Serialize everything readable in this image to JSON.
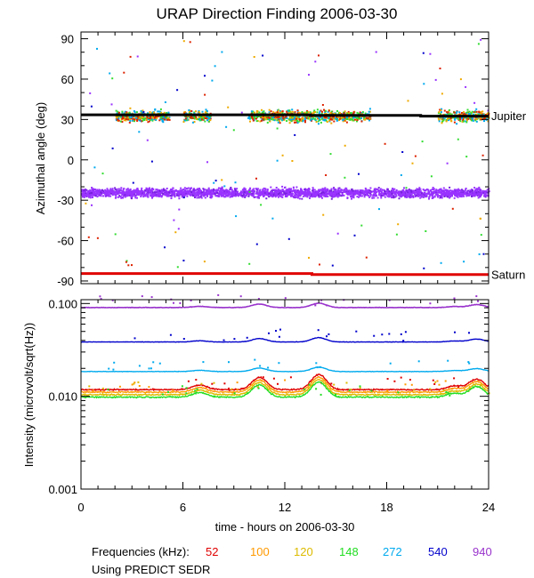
{
  "chart_data": [
    {
      "type": "scatter",
      "panel": "top",
      "title": "URAP Direction Finding  2006-03-30",
      "ylabel": "Azimuthal angle (deg)",
      "xlabel": "",
      "xlim": [
        0,
        24
      ],
      "ylim": [
        -92,
        95
      ],
      "y_ticks": [
        90,
        60,
        30,
        0,
        -30,
        -60,
        -90
      ],
      "y_tick_labels": [
        "90",
        "60",
        "30",
        "0",
        "-30",
        "-60",
        "-90"
      ],
      "annotations": [
        {
          "text": "Jupiter",
          "y": 33
        },
        {
          "text": "Saturn",
          "y": -85
        }
      ],
      "series": [
        {
          "name": "Jupiter direction",
          "color": "#000000",
          "kind": "line",
          "points": [
            [
              0,
              33.5
            ],
            [
              13.5,
              33.5
            ],
            [
              13.5,
              33
            ],
            [
              20,
              33
            ],
            [
              20,
              32.5
            ],
            [
              24,
              32.5
            ]
          ]
        },
        {
          "name": "Saturn direction",
          "color": "#e00000",
          "kind": "line",
          "points": [
            [
              0,
              -84.5
            ],
            [
              13.6,
              -84.5
            ],
            [
              13.6,
              -85.2
            ],
            [
              24,
              -85.2
            ]
          ]
        },
        {
          "name": "940 kHz cluster",
          "color": "#9933ff",
          "kind": "band",
          "center": -24,
          "spread": 5
        },
        {
          "name": "Jupiter-band detections",
          "colors": [
            "#33dd33",
            "#eeaa00",
            "#dd2200",
            "#00aaee"
          ],
          "kind": "scatter-band",
          "center": 33,
          "spread": 6,
          "segments": [
            [
              2.0,
              5.2
            ],
            [
              6.0,
              7.6
            ],
            [
              9.8,
              17.0
            ],
            [
              21.0,
              24.0
            ]
          ]
        }
      ]
    },
    {
      "type": "line",
      "panel": "bottom",
      "ylabel": "Intensity (microvolt/sqrt(Hz))",
      "xlabel": "time - hours on 2006-03-30",
      "xlim": [
        0,
        24
      ],
      "y_scale": "log",
      "ylim": [
        0.001,
        0.11
      ],
      "x_ticks": [
        0,
        6,
        12,
        18,
        24
      ],
      "x_tick_labels": [
        "0",
        "6",
        "12",
        "18",
        "24"
      ],
      "y_ticks": [
        0.1,
        0.01,
        0.001
      ],
      "y_tick_labels": [
        "0.100",
        "0.010",
        "0.001"
      ],
      "series": [
        {
          "name": "52",
          "color": "#e00000",
          "level": 0.0118
        },
        {
          "name": "100",
          "color": "#ff9900",
          "level": 0.0111
        },
        {
          "name": "120",
          "color": "#ddbb00",
          "level": 0.0104
        },
        {
          "name": "148",
          "color": "#22dd22",
          "level": 0.0098
        },
        {
          "name": "272",
          "color": "#00aaee",
          "level": 0.0185
        },
        {
          "name": "540",
          "color": "#0000cc",
          "level": 0.0385
        },
        {
          "name": "940",
          "color": "#9933cc",
          "level": 0.0905
        }
      ],
      "bumps": [
        [
          10.5,
          1.35
        ],
        [
          14.0,
          1.45
        ],
        [
          7.0,
          1.12
        ],
        [
          22.0,
          1.1
        ],
        [
          23.3,
          1.3
        ]
      ]
    }
  ],
  "footer": {
    "frequencies_label": "Frequencies (kHz):",
    "frequencies": [
      {
        "label": "52",
        "color": "#e00000"
      },
      {
        "label": "100",
        "color": "#ff9900"
      },
      {
        "label": "120",
        "color": "#ddbb00"
      },
      {
        "label": "148",
        "color": "#22dd22"
      },
      {
        "label": "272",
        "color": "#00aaee"
      },
      {
        "label": "540",
        "color": "#0000cc"
      },
      {
        "label": "940",
        "color": "#9933cc"
      }
    ],
    "source_note": "Using PREDICT SEDR"
  }
}
